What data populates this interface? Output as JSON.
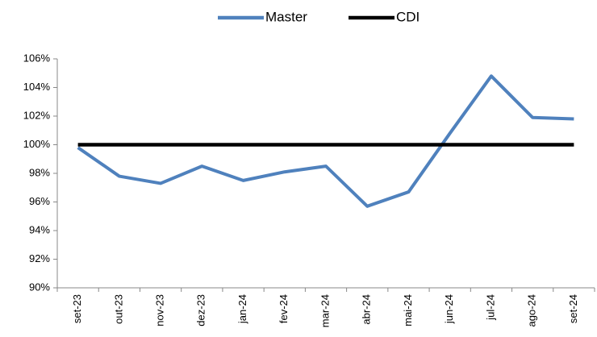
{
  "chart_data": {
    "type": "line",
    "categories": [
      "set-23",
      "out-23",
      "nov-23",
      "dez-23",
      "jan-24",
      "fev-24",
      "mar-24",
      "abr-24",
      "mai-24",
      "jun-24",
      "jul-24",
      "ago-24",
      "set-24"
    ],
    "series": [
      {
        "name": "Master",
        "color": "#4f81bd",
        "values": [
          99.8,
          97.8,
          97.3,
          98.5,
          97.5,
          98.1,
          98.5,
          95.7,
          96.7,
          100.8,
          104.8,
          101.9,
          101.8
        ]
      },
      {
        "name": "CDI",
        "color": "#000000",
        "values": [
          100,
          100,
          100,
          100,
          100,
          100,
          100,
          100,
          100,
          100,
          100,
          100,
          100
        ]
      }
    ],
    "ylim": [
      90,
      106
    ],
    "yticks": [
      {
        "value": 90,
        "label": "90%"
      },
      {
        "value": 92,
        "label": "92%"
      },
      {
        "value": 94,
        "label": "94%"
      },
      {
        "value": 96,
        "label": "96%"
      },
      {
        "value": 98,
        "label": "98%"
      },
      {
        "value": 100,
        "label": "100%"
      },
      {
        "value": 102,
        "label": "102%"
      },
      {
        "value": 104,
        "label": "104%"
      },
      {
        "value": 106,
        "label": "106%"
      }
    ],
    "legend": "top",
    "grid": false
  }
}
